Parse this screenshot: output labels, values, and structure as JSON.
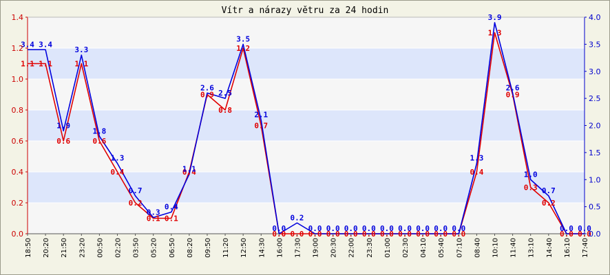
{
  "chart_data": {
    "type": "line",
    "title": "Vítr a nárazy větru za 24 hodin",
    "xlabel": "",
    "ylabel": "",
    "grid": true,
    "legend": "none",
    "colors": {
      "background": "#f3f3e6",
      "plot_band_light": "#f6f6f6",
      "plot_band_blue": "#dde6fb",
      "gridline": "#ffffff",
      "left_axis": "#cc0000",
      "right_axis": "#0000cc",
      "gust_series": "#e00000",
      "wind_series": "#0000dd",
      "frame": "#555555"
    },
    "ylim_left": [
      0,
      1.4
    ],
    "ylim_right": [
      0,
      4.0
    ],
    "y_ticks_left": [
      "0.0",
      "0.2",
      "0.4",
      "0.6",
      "0.8",
      "1.0",
      "1.2",
      "1.4"
    ],
    "y_ticks_right": [
      "0.0",
      "0.5",
      "1.0",
      "1.5",
      "2.0",
      "2.5",
      "3.0",
      "3.5",
      "4.0"
    ],
    "x_tick_labels": [
      "18:50",
      "20:20",
      "21:50",
      "23:20",
      "00:50",
      "02:20",
      "03:50",
      "05:20",
      "06:50",
      "08:20",
      "09:50",
      "11:20",
      "12:50",
      "14:30",
      "16:00",
      "17:30",
      "19:00",
      "20:30",
      "22:00",
      "23:30",
      "01:00",
      "02:30",
      "04:10",
      "05:40",
      "07:10",
      "08:40",
      "10:10",
      "11:40",
      "13:10",
      "14:40",
      "16:10",
      "17:40"
    ],
    "series": [
      {
        "axis": "right",
        "values": [
          3.4,
          3.4,
          1.9,
          3.3,
          1.8,
          1.3,
          0.7,
          0.3,
          0.4,
          1.1,
          2.6,
          2.5,
          3.5,
          2.1,
          0.0,
          0.2,
          0.0,
          0.0,
          0.0,
          0.0,
          0.0,
          0.0,
          0.0,
          0.0,
          0.0,
          1.3,
          3.9,
          2.6,
          1.0,
          0.7,
          0.0,
          0.0
        ],
        "labels": [
          "3.4",
          "3.4",
          "1.9",
          "3.3",
          "1.8",
          "1.3",
          "0.7",
          "0.3",
          "0.4",
          "1.1",
          "2.6",
          "2.5",
          "3.5",
          "2.1",
          "0.0",
          "0.2",
          "0.0",
          "0.0",
          "0.0",
          "0.0",
          "0.0",
          "0.0",
          "0.0",
          "0.0",
          "0.0",
          "1.3",
          "3.9",
          "2.6",
          "1.0",
          "0.7",
          "0.0",
          "0.0"
        ]
      },
      {
        "axis": "left",
        "values": [
          1.1,
          1.1,
          0.6,
          1.1,
          0.6,
          0.4,
          0.2,
          0.1,
          0.1,
          0.4,
          0.9,
          0.8,
          1.2,
          0.7,
          0.0,
          0.0,
          0.0,
          0.0,
          0.0,
          0.0,
          0.0,
          0.0,
          0.0,
          0.0,
          0.0,
          0.4,
          1.3,
          0.9,
          0.3,
          0.2,
          0.0,
          0.0
        ],
        "labels": [
          "1.1",
          "1.1",
          "0.6",
          "1.1",
          "0.6",
          "0.4",
          "0.2",
          "0.1",
          "0.1",
          "0.4",
          "0.9",
          "0.8",
          "1.2",
          "0.7",
          "0.0",
          "0.0",
          "0.0",
          "0.0",
          "0.0",
          "0.0",
          "0.0",
          "0.0",
          "0.0",
          "0.0",
          "0.0",
          "0.4",
          "1.3",
          "0.9",
          "0.3",
          "0.2",
          "0.0",
          "0.0"
        ]
      }
    ]
  }
}
